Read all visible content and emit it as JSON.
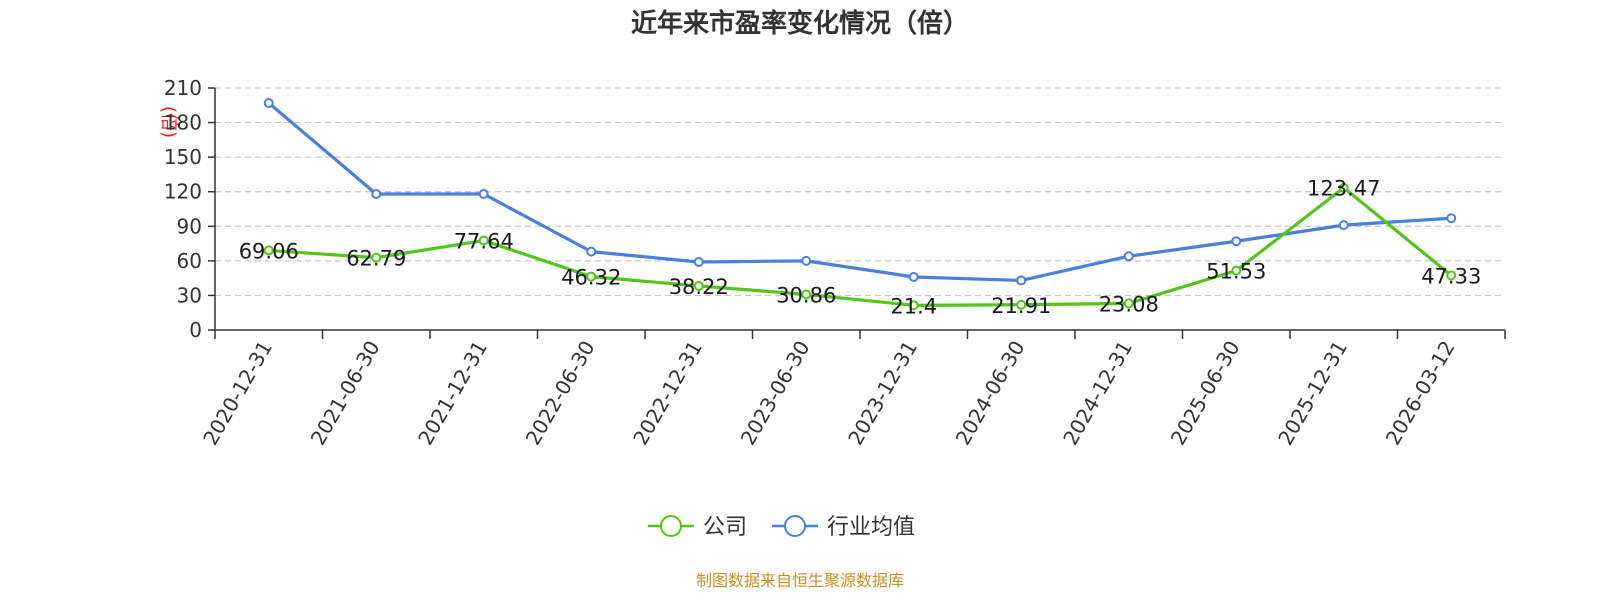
{
  "title": "近年来市盈率变化情况（倍）",
  "source": "制图数据来自恒生聚源数据库",
  "chart_data": {
    "type": "line",
    "title": "近年来市盈率变化情况（倍）",
    "ylabel": "(倍)",
    "ylim": [
      0,
      210
    ],
    "yticks": [
      0,
      30,
      60,
      90,
      120,
      150,
      180,
      210
    ],
    "grid": true,
    "legend_position": "bottom-center",
    "categories": [
      "2020-12-31",
      "2021-06-30",
      "2021-12-31",
      "2022-06-30",
      "2022-12-31",
      "2023-06-30",
      "2023-12-31",
      "2024-06-30",
      "2024-12-31",
      "2025-06-30",
      "2025-12-31",
      "2026-03-12"
    ],
    "series": [
      {
        "name": "公司",
        "color": "#52c41a",
        "values": [
          69.06,
          62.79,
          77.64,
          46.32,
          38.22,
          30.86,
          21.4,
          21.91,
          23.08,
          51.53,
          123.47,
          47.33
        ],
        "labels": [
          "69.06",
          "62.79",
          "77.64",
          "46.32",
          "38.22",
          "30.86",
          "21.4",
          "21.91",
          "23.08",
          "51.53",
          "123.47",
          "47.33"
        ]
      },
      {
        "name": "行业均值",
        "color": "#4a7fdc",
        "values": [
          197,
          118,
          118,
          68,
          59,
          60,
          46,
          43,
          64,
          77,
          91,
          97
        ]
      }
    ]
  }
}
